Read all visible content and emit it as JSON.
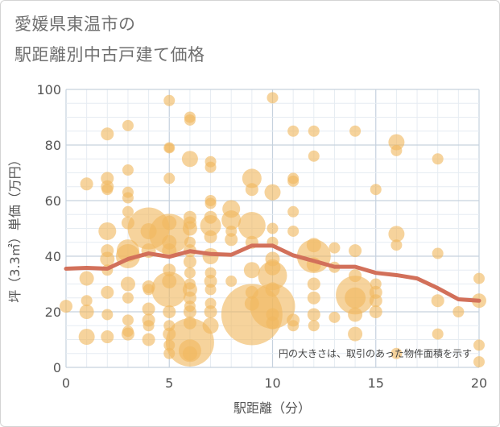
{
  "chart_data": {
    "type": "scatter",
    "title_line1": "愛媛県東温市の",
    "title_line2": "駅距離別中古戸建て価格",
    "xlabel": "駅距離（分）",
    "ylabel": "坪（3.3㎡）単価（万円）",
    "xlim": [
      0,
      20
    ],
    "ylim": [
      0,
      100
    ],
    "xticks": [
      "0",
      "5",
      "10",
      "15",
      "20"
    ],
    "yticks": [
      "0",
      "20",
      "40",
      "60",
      "80",
      "100"
    ],
    "note": "円の大きさは、取引のあった物件面積を示す",
    "colors": {
      "bubble": "#f0b860",
      "line": "#d2705a",
      "grid": "#c8d4e0"
    },
    "points": [
      {
        "x": 0,
        "y": 22,
        "r": 8
      },
      {
        "x": 1,
        "y": 66,
        "r": 8
      },
      {
        "x": 1,
        "y": 32,
        "r": 9
      },
      {
        "x": 1,
        "y": 24,
        "r": 7
      },
      {
        "x": 1,
        "y": 20,
        "r": 9
      },
      {
        "x": 1,
        "y": 11,
        "r": 10
      },
      {
        "x": 2,
        "y": 84,
        "r": 8
      },
      {
        "x": 2,
        "y": 68,
        "r": 8
      },
      {
        "x": 2,
        "y": 65,
        "r": 8
      },
      {
        "x": 2,
        "y": 64,
        "r": 7
      },
      {
        "x": 2,
        "y": 49,
        "r": 11
      },
      {
        "x": 2,
        "y": 42,
        "r": 8
      },
      {
        "x": 2,
        "y": 39,
        "r": 9
      },
      {
        "x": 2,
        "y": 35,
        "r": 7
      },
      {
        "x": 2,
        "y": 27,
        "r": 8
      },
      {
        "x": 2,
        "y": 19,
        "r": 7
      },
      {
        "x": 2,
        "y": 11,
        "r": 8
      },
      {
        "x": 3,
        "y": 87,
        "r": 7
      },
      {
        "x": 3,
        "y": 71,
        "r": 7
      },
      {
        "x": 3,
        "y": 63,
        "r": 7
      },
      {
        "x": 3,
        "y": 61,
        "r": 7
      },
      {
        "x": 3,
        "y": 56,
        "r": 7
      },
      {
        "x": 3,
        "y": 52,
        "r": 8
      },
      {
        "x": 3,
        "y": 42,
        "r": 14
      },
      {
        "x": 3,
        "y": 40,
        "r": 15
      },
      {
        "x": 3,
        "y": 30,
        "r": 9
      },
      {
        "x": 3,
        "y": 25,
        "r": 7
      },
      {
        "x": 3,
        "y": 17,
        "r": 7
      },
      {
        "x": 3,
        "y": 13,
        "r": 7
      },
      {
        "x": 3,
        "y": 12,
        "r": 8
      },
      {
        "x": 4,
        "y": 50,
        "r": 26
      },
      {
        "x": 4,
        "y": 49,
        "r": 10
      },
      {
        "x": 4,
        "y": 42,
        "r": 9
      },
      {
        "x": 4,
        "y": 29,
        "r": 8
      },
      {
        "x": 4,
        "y": 28,
        "r": 7
      },
      {
        "x": 4,
        "y": 21,
        "r": 8
      },
      {
        "x": 4,
        "y": 17,
        "r": 8
      },
      {
        "x": 4,
        "y": 15,
        "r": 7
      },
      {
        "x": 4,
        "y": 10,
        "r": 8
      },
      {
        "x": 5,
        "y": 96,
        "r": 7
      },
      {
        "x": 5,
        "y": 79,
        "r": 7
      },
      {
        "x": 5,
        "y": 79,
        "r": 6
      },
      {
        "x": 5,
        "y": 68,
        "r": 7
      },
      {
        "x": 5,
        "y": 52,
        "r": 9
      },
      {
        "x": 5,
        "y": 48,
        "r": 25
      },
      {
        "x": 5,
        "y": 45,
        "r": 9
      },
      {
        "x": 5,
        "y": 42,
        "r": 9
      },
      {
        "x": 5,
        "y": 35,
        "r": 8
      },
      {
        "x": 5,
        "y": 31,
        "r": 9
      },
      {
        "x": 5,
        "y": 28,
        "r": 22
      },
      {
        "x": 5,
        "y": 20,
        "r": 8
      },
      {
        "x": 5,
        "y": 15,
        "r": 7
      },
      {
        "x": 5,
        "y": 12,
        "r": 8
      },
      {
        "x": 5,
        "y": 8,
        "r": 7
      },
      {
        "x": 5,
        "y": 5,
        "r": 7
      },
      {
        "x": 6,
        "y": 90,
        "r": 7
      },
      {
        "x": 6,
        "y": 89,
        "r": 7
      },
      {
        "x": 6,
        "y": 75,
        "r": 10
      },
      {
        "x": 6,
        "y": 54,
        "r": 8
      },
      {
        "x": 6,
        "y": 52,
        "r": 8
      },
      {
        "x": 6,
        "y": 50,
        "r": 9
      },
      {
        "x": 6,
        "y": 45,
        "r": 7
      },
      {
        "x": 6,
        "y": 42,
        "r": 8
      },
      {
        "x": 6,
        "y": 38,
        "r": 8
      },
      {
        "x": 6,
        "y": 34,
        "r": 7
      },
      {
        "x": 6,
        "y": 30,
        "r": 7
      },
      {
        "x": 6,
        "y": 28,
        "r": 9
      },
      {
        "x": 6,
        "y": 25,
        "r": 8
      },
      {
        "x": 6,
        "y": 22,
        "r": 7
      },
      {
        "x": 6,
        "y": 20,
        "r": 8
      },
      {
        "x": 6,
        "y": 16,
        "r": 8
      },
      {
        "x": 6,
        "y": 9,
        "r": 30
      },
      {
        "x": 6,
        "y": 6,
        "r": 14
      },
      {
        "x": 6,
        "y": 5,
        "r": 9
      },
      {
        "x": 7,
        "y": 74,
        "r": 7
      },
      {
        "x": 7,
        "y": 72,
        "r": 7
      },
      {
        "x": 7,
        "y": 60,
        "r": 7
      },
      {
        "x": 7,
        "y": 59,
        "r": 7
      },
      {
        "x": 7,
        "y": 54,
        "r": 8
      },
      {
        "x": 7,
        "y": 51,
        "r": 13
      },
      {
        "x": 7,
        "y": 47,
        "r": 8
      },
      {
        "x": 7,
        "y": 40,
        "r": 10
      },
      {
        "x": 7,
        "y": 34,
        "r": 7
      },
      {
        "x": 7,
        "y": 31,
        "r": 8
      },
      {
        "x": 7,
        "y": 28,
        "r": 7
      },
      {
        "x": 7,
        "y": 23,
        "r": 7
      },
      {
        "x": 7,
        "y": 20,
        "r": 8
      },
      {
        "x": 7,
        "y": 15,
        "r": 10
      },
      {
        "x": 8,
        "y": 57,
        "r": 11
      },
      {
        "x": 8,
        "y": 53,
        "r": 12
      },
      {
        "x": 8,
        "y": 49,
        "r": 7
      },
      {
        "x": 8,
        "y": 46,
        "r": 8
      },
      {
        "x": 8,
        "y": 31,
        "r": 7
      },
      {
        "x": 9,
        "y": 68,
        "r": 12
      },
      {
        "x": 9,
        "y": 64,
        "r": 8
      },
      {
        "x": 9,
        "y": 51,
        "r": 17
      },
      {
        "x": 9,
        "y": 45,
        "r": 8
      },
      {
        "x": 9,
        "y": 35,
        "r": 10
      },
      {
        "x": 9,
        "y": 27,
        "r": 8
      },
      {
        "x": 9,
        "y": 23,
        "r": 9
      },
      {
        "x": 9,
        "y": 19,
        "r": 38
      },
      {
        "x": 10,
        "y": 97,
        "r": 7
      },
      {
        "x": 10,
        "y": 63,
        "r": 10
      },
      {
        "x": 10,
        "y": 50,
        "r": 7
      },
      {
        "x": 10,
        "y": 45,
        "r": 7
      },
      {
        "x": 10,
        "y": 39,
        "r": 9
      },
      {
        "x": 10,
        "y": 36,
        "r": 10
      },
      {
        "x": 10,
        "y": 33,
        "r": 18
      },
      {
        "x": 10,
        "y": 28,
        "r": 9
      },
      {
        "x": 10,
        "y": 22,
        "r": 28
      },
      {
        "x": 10,
        "y": 19,
        "r": 8
      },
      {
        "x": 10,
        "y": 16,
        "r": 8
      },
      {
        "x": 11,
        "y": 85,
        "r": 7
      },
      {
        "x": 11,
        "y": 68,
        "r": 7
      },
      {
        "x": 11,
        "y": 67,
        "r": 7
      },
      {
        "x": 11,
        "y": 56,
        "r": 7
      },
      {
        "x": 11,
        "y": 49,
        "r": 7
      },
      {
        "x": 11,
        "y": 17,
        "r": 8
      },
      {
        "x": 11,
        "y": 15,
        "r": 7
      },
      {
        "x": 12,
        "y": 85,
        "r": 7
      },
      {
        "x": 12,
        "y": 76,
        "r": 7
      },
      {
        "x": 12,
        "y": 44,
        "r": 9
      },
      {
        "x": 12,
        "y": 40,
        "r": 21
      },
      {
        "x": 12,
        "y": 37,
        "r": 9
      },
      {
        "x": 12,
        "y": 30,
        "r": 8
      },
      {
        "x": 12,
        "y": 25,
        "r": 8
      },
      {
        "x": 12,
        "y": 19,
        "r": 8
      },
      {
        "x": 12,
        "y": 15,
        "r": 7
      },
      {
        "x": 13,
        "y": 43,
        "r": 7
      },
      {
        "x": 13,
        "y": 36,
        "r": 7
      },
      {
        "x": 13,
        "y": 18,
        "r": 7
      },
      {
        "x": 14,
        "y": 85,
        "r": 7
      },
      {
        "x": 14,
        "y": 42,
        "r": 8
      },
      {
        "x": 14,
        "y": 33,
        "r": 8
      },
      {
        "x": 14,
        "y": 26,
        "r": 24
      },
      {
        "x": 14,
        "y": 25,
        "r": 13
      },
      {
        "x": 14,
        "y": 19,
        "r": 9
      },
      {
        "x": 14,
        "y": 12,
        "r": 9
      },
      {
        "x": 15,
        "y": 64,
        "r": 7
      },
      {
        "x": 15,
        "y": 30,
        "r": 7
      },
      {
        "x": 15,
        "y": 27,
        "r": 8
      },
      {
        "x": 15,
        "y": 24,
        "r": 8
      },
      {
        "x": 15,
        "y": 20,
        "r": 8
      },
      {
        "x": 16,
        "y": 81,
        "r": 10
      },
      {
        "x": 16,
        "y": 78,
        "r": 7
      },
      {
        "x": 16,
        "y": 48,
        "r": 10
      },
      {
        "x": 16,
        "y": 44,
        "r": 7
      },
      {
        "x": 16,
        "y": 5,
        "r": 7
      },
      {
        "x": 18,
        "y": 75,
        "r": 7
      },
      {
        "x": 18,
        "y": 41,
        "r": 7
      },
      {
        "x": 18,
        "y": 24,
        "r": 8
      },
      {
        "x": 18,
        "y": 12,
        "r": 7
      },
      {
        "x": 19,
        "y": 20,
        "r": 7
      },
      {
        "x": 20,
        "y": 32,
        "r": 7
      },
      {
        "x": 20,
        "y": 24,
        "r": 9
      },
      {
        "x": 20,
        "y": 8,
        "r": 7
      },
      {
        "x": 20,
        "y": 2,
        "r": 7
      }
    ],
    "trend": {
      "x": [
        0,
        1,
        2,
        3,
        4,
        5,
        6,
        7,
        8,
        9,
        10,
        11,
        12,
        13,
        14,
        15,
        16,
        17,
        18,
        19,
        20
      ],
      "y": [
        35.5,
        35.8,
        35.5,
        39,
        41,
        39.8,
        41.8,
        40.8,
        40.5,
        43.8,
        43.8,
        40.3,
        38.3,
        36.2,
        36.2,
        34,
        33.2,
        32,
        28.5,
        24.5,
        24
      ]
    }
  }
}
